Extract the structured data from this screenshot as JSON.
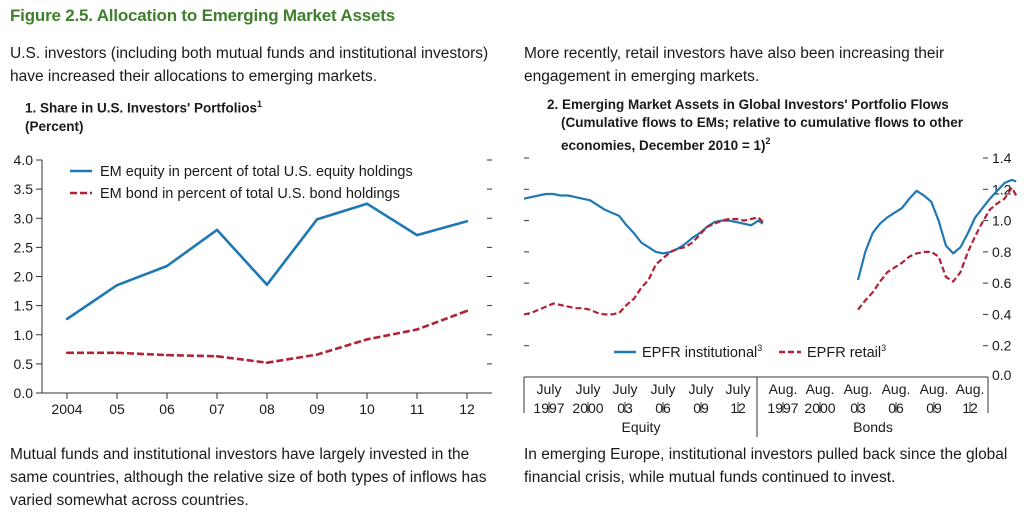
{
  "figure_title": "Figure 2.5. Allocation to Emerging Market Assets",
  "text": {
    "left_top": "U.S. investors (including both mutual funds and institutional investors) have increased their allocations to emerging markets.",
    "right_top": "More recently, retail investors have also been increasing their engagement in emerging markets.",
    "left_bottom": "Mutual funds and institutional investors have largely invested in the same countries, although the relative size of both types of inflows has varied somewhat across countries.",
    "right_bottom": "In emerging Europe, institutional investors pulled back since the global financial crisis, while mutual funds continued to invest."
  },
  "panel1": {
    "title_main": "1. Share in U.S. Investors' Portfolios",
    "title_sup": "1",
    "subtitle": "(Percent)"
  },
  "panel2": {
    "title_line1": "2. Emerging Market Assets in Global Investors' Portfolio Flows",
    "title_line2": "(Cumulative flows to EMs; relative to cumulative flows to other",
    "title_line3": "economies, December 2010 = 1)",
    "title_sup": "2"
  },
  "colors": {
    "title": "#3f7f2e",
    "blue": "#1f78b4",
    "red": "#b22234"
  },
  "chart_data": [
    {
      "type": "line",
      "categories": [
        "2004",
        "05",
        "06",
        "07",
        "08",
        "09",
        "10",
        "11",
        "12"
      ],
      "ylim": [
        0,
        4
      ],
      "yticks": [
        "0.0",
        "0.5",
        "1.0",
        "1.5",
        "2.0",
        "2.5",
        "3.0",
        "3.5",
        "4.0"
      ],
      "series": [
        {
          "name": "EM equity in percent of total U.S. equity holdings",
          "style": "solid",
          "color": "#1f78b4",
          "values": [
            1.27,
            1.85,
            2.18,
            2.8,
            1.86,
            2.98,
            3.25,
            2.71,
            2.95
          ]
        },
        {
          "name": "EM bond in percent of total U.S. bond holdings",
          "style": "dashed",
          "color": "#b22234",
          "values": [
            0.69,
            0.69,
            0.65,
            0.63,
            0.52,
            0.66,
            0.92,
            1.09,
            1.41
          ]
        }
      ],
      "legend": "top-left"
    },
    {
      "type": "line",
      "ylim": [
        0,
        1.4
      ],
      "yticks": [
        "0.0",
        "0.2",
        "0.4",
        "0.6",
        "0.8",
        "1.0",
        "1.2",
        "1.4"
      ],
      "groups": [
        {
          "label": "Equity",
          "tick_labels": [
            [
              "July",
              "1997"
            ],
            [
              "July",
              "2000"
            ],
            [
              "July",
              "03"
            ],
            [
              "July",
              "06"
            ],
            [
              "July",
              "09"
            ],
            [
              "July",
              "12"
            ]
          ]
        },
        {
          "label": "Bonds",
          "tick_labels": [
            [
              "Aug.",
              "1997"
            ],
            [
              "Aug.",
              "2000"
            ],
            [
              "Aug.",
              "03"
            ],
            [
              "Aug.",
              "06"
            ],
            [
              "Aug.",
              "09"
            ],
            [
              "Aug.",
              "12"
            ]
          ]
        }
      ],
      "series": [
        {
          "name": "EPFR institutional",
          "name_sup": "3",
          "style": "solid",
          "color": "#1f78b4",
          "equity": {
            "x": [
              1996.5,
              1997.0,
              1997.5,
              1998.0,
              1998.5,
              1999.0,
              1999.5,
              2000.0,
              2000.5,
              2001.0,
              2001.5,
              2002.0,
              2002.5,
              2003.0,
              2003.5,
              2004.0,
              2004.5,
              2005.0,
              2005.5,
              2006.0,
              2006.5,
              2007.0,
              2007.5,
              2008.0,
              2008.5,
              2009.0,
              2009.5,
              2010.0,
              2010.5,
              2011.0,
              2011.5,
              2012.0,
              2012.5,
              2012.8
            ],
            "y": [
              1.14,
              1.15,
              1.16,
              1.17,
              1.17,
              1.16,
              1.16,
              1.15,
              1.14,
              1.13,
              1.1,
              1.07,
              1.05,
              1.03,
              0.97,
              0.92,
              0.86,
              0.83,
              0.8,
              0.79,
              0.8,
              0.82,
              0.85,
              0.89,
              0.92,
              0.96,
              0.99,
              1.0,
              1.0,
              0.99,
              0.98,
              0.97,
              1.0,
              0.98
            ]
          },
          "bonds": {
            "x": [
              2002.0,
              2002.5,
              2003.0,
              2003.5,
              2004.0,
              2004.5,
              2005.0,
              2005.5,
              2006.0,
              2006.5,
              2007.0,
              2007.5,
              2008.0,
              2008.5,
              2009.0,
              2009.5,
              2010.0,
              2010.5,
              2011.0,
              2011.5,
              2012.0,
              2012.5,
              2012.8
            ],
            "y": [
              0.62,
              0.8,
              0.92,
              0.98,
              1.02,
              1.05,
              1.08,
              1.14,
              1.19,
              1.16,
              1.12,
              1.0,
              0.84,
              0.79,
              0.83,
              0.92,
              1.02,
              1.08,
              1.14,
              1.19,
              1.24,
              1.26,
              1.25
            ]
          }
        },
        {
          "name": "EPFR retail",
          "name_sup": "3",
          "style": "dashed",
          "color": "#b22234",
          "equity": {
            "x": [
              1996.5,
              1997.0,
              1997.5,
              1998.0,
              1998.5,
              1999.0,
              1999.5,
              2000.0,
              2000.5,
              2001.0,
              2001.5,
              2002.0,
              2002.5,
              2003.0,
              2003.5,
              2004.0,
              2004.5,
              2005.0,
              2005.5,
              2006.0,
              2006.5,
              2007.0,
              2007.5,
              2008.0,
              2008.5,
              2009.0,
              2009.5,
              2010.0,
              2010.5,
              2011.0,
              2011.5,
              2012.0,
              2012.5,
              2012.8
            ],
            "y": [
              0.4,
              0.41,
              0.43,
              0.45,
              0.47,
              0.46,
              0.45,
              0.44,
              0.44,
              0.43,
              0.41,
              0.4,
              0.4,
              0.41,
              0.46,
              0.5,
              0.57,
              0.62,
              0.72,
              0.76,
              0.8,
              0.82,
              0.83,
              0.86,
              0.91,
              0.96,
              0.98,
              1.0,
              1.01,
              1.01,
              1.0,
              1.01,
              1.02,
              0.99
            ]
          },
          "bonds": {
            "x": [
              2002.0,
              2002.5,
              2003.0,
              2003.5,
              2004.0,
              2004.5,
              2005.0,
              2005.5,
              2006.0,
              2006.5,
              2007.0,
              2007.5,
              2008.0,
              2008.5,
              2009.0,
              2009.5,
              2010.0,
              2010.5,
              2011.0,
              2011.5,
              2012.0,
              2012.5,
              2012.8
            ],
            "y": [
              0.43,
              0.49,
              0.54,
              0.61,
              0.67,
              0.7,
              0.73,
              0.77,
              0.79,
              0.8,
              0.8,
              0.77,
              0.64,
              0.61,
              0.67,
              0.8,
              0.9,
              0.99,
              1.07,
              1.11,
              1.14,
              1.21,
              1.16
            ]
          }
        }
      ],
      "legend": "bottom-center"
    }
  ]
}
